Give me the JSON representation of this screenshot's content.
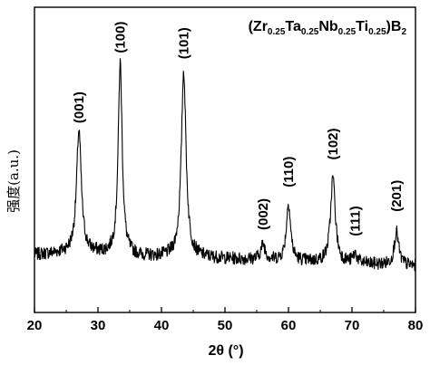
{
  "chart_data": {
    "type": "line",
    "title": {
      "parts": [
        {
          "text": "(Zr",
          "sub": false
        },
        {
          "text": "0.25",
          "sub": true
        },
        {
          "text": "Ta",
          "sub": false
        },
        {
          "text": "0.25",
          "sub": true
        },
        {
          "text": "Nb",
          "sub": false
        },
        {
          "text": "0.25",
          "sub": true
        },
        {
          "text": "Ti",
          "sub": false
        },
        {
          "text": "0.25",
          "sub": true
        },
        {
          "text": ")B",
          "sub": false
        },
        {
          "text": "2",
          "sub": true
        }
      ]
    },
    "xlabel": "2θ (°)",
    "ylabel": "强度(a.u.)",
    "xlim": [
      20,
      80
    ],
    "ylim": [
      0,
      100
    ],
    "xticks": [
      "20",
      "30",
      "40",
      "50",
      "60",
      "70",
      "80"
    ],
    "baseline": 18,
    "peaks": [
      {
        "label": "(001)",
        "x": 27.0,
        "y": 58
      },
      {
        "label": "(100)",
        "x": 33.5,
        "y": 81
      },
      {
        "label": "(101)",
        "x": 43.5,
        "y": 79
      },
      {
        "label": "(002)",
        "x": 56.0,
        "y": 23
      },
      {
        "label": "(110)",
        "x": 60.0,
        "y": 37
      },
      {
        "label": "(102)",
        "x": 67.0,
        "y": 46
      },
      {
        "label": "(111)",
        "x": 70.5,
        "y": 21
      },
      {
        "label": "(201)",
        "x": 77.0,
        "y": 29
      }
    ],
    "series_color": "#000000",
    "grid": false,
    "legend": "none"
  }
}
